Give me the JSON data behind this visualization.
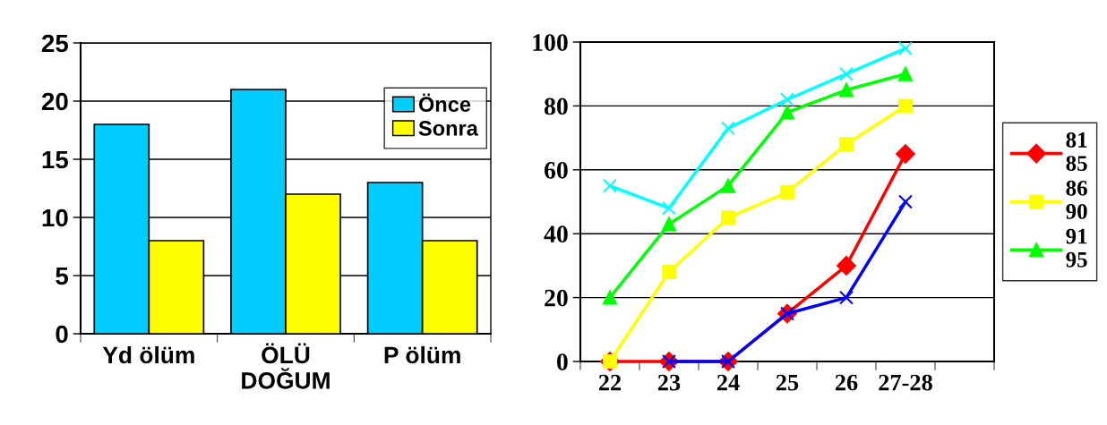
{
  "chart_data": [
    {
      "type": "bar",
      "categories": [
        "Yd ölüm",
        "ÖLÜ\nDOĞUM",
        "P ölüm"
      ],
      "series": [
        {
          "name": "Önce",
          "color": "#00ccff",
          "values": [
            18,
            21,
            13
          ]
        },
        {
          "name": "Sonra",
          "color": "#ffff00",
          "values": [
            8,
            12,
            8
          ]
        }
      ],
      "ylim": [
        0,
        25
      ],
      "yticks": [
        0,
        5,
        10,
        15,
        20,
        25
      ],
      "grid": "y",
      "legend": "right"
    },
    {
      "type": "line",
      "categories": [
        "22",
        "23",
        "24",
        "25",
        "26",
        "27-28",
        null
      ],
      "series": [
        {
          "name": "81\n85",
          "color": "#ff0000",
          "marker": "diamond",
          "values": [
            0,
            0,
            0,
            15,
            30,
            65,
            null
          ]
        },
        {
          "name": "86\n90",
          "color": "#ffff00",
          "marker": "square",
          "values": [
            0,
            28,
            45,
            53,
            68,
            80,
            null
          ]
        },
        {
          "name": "91\n95",
          "color": "#00ff00",
          "marker": "triangle",
          "values": [
            20,
            43,
            55,
            78,
            85,
            90,
            null
          ]
        },
        {
          "color": "#00ffff",
          "marker": "cross",
          "values": [
            55,
            48,
            73,
            82,
            90,
            98,
            null
          ]
        },
        {
          "color": "#0000ff",
          "marker": "cross",
          "values": [
            null,
            0,
            0,
            15,
            20,
            50,
            null
          ]
        }
      ],
      "ylim": [
        0,
        100
      ],
      "yticks": [
        0,
        20,
        40,
        60,
        80,
        100
      ],
      "grid": "y",
      "legend": "right"
    }
  ]
}
